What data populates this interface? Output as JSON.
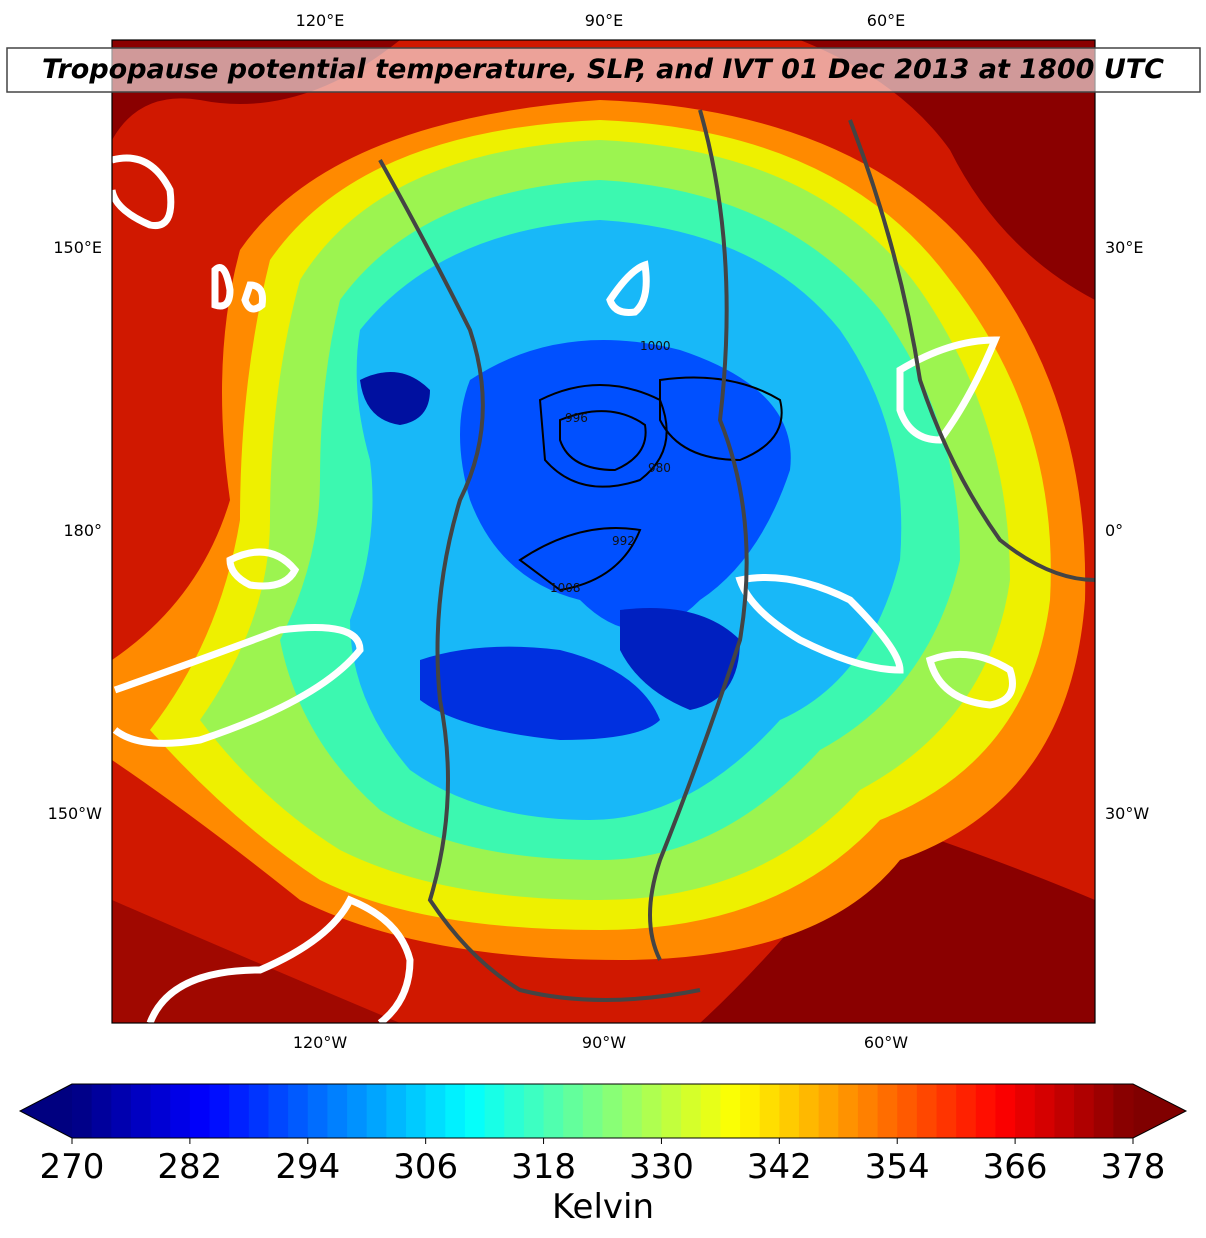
{
  "map": {
    "title": "Tropopause potential temperature, SLP, and IVT 01 Dec 2013 at 1800 UTC",
    "top_labels": [
      "120°E",
      "90°E",
      "60°E"
    ],
    "bottom_labels": [
      "120°W",
      "90°W",
      "60°W"
    ],
    "left_labels": [
      "150°E",
      "180°",
      "150°W"
    ],
    "right_labels": [
      "30°E",
      "0°",
      "30°W"
    ],
    "contour_labels": [
      "1000",
      "992",
      "980",
      "996",
      "1008"
    ]
  },
  "colorbar": {
    "label": "Kelvin",
    "colormap": "jet",
    "lim": [
      270,
      378
    ],
    "ticks": [
      270,
      282,
      294,
      306,
      318,
      330,
      342,
      354,
      366,
      378
    ]
  }
}
